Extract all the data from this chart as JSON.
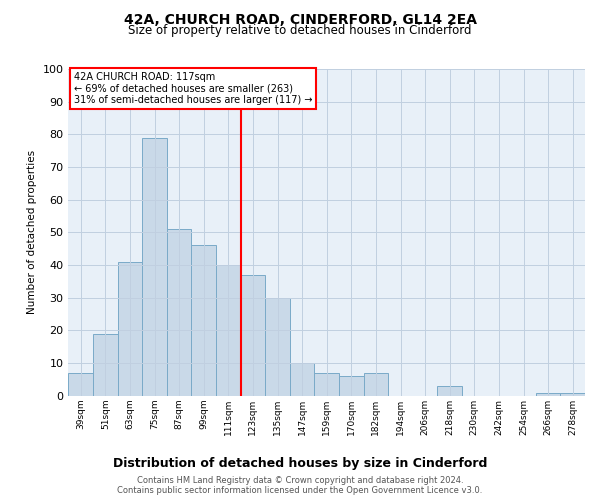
{
  "title": "42A, CHURCH ROAD, CINDERFORD, GL14 2EA",
  "subtitle": "Size of property relative to detached houses in Cinderford",
  "xlabel": "Distribution of detached houses by size in Cinderford",
  "ylabel": "Number of detached properties",
  "footer1": "Contains HM Land Registry data © Crown copyright and database right 2024.",
  "footer2": "Contains public sector information licensed under the Open Government Licence v3.0.",
  "annotation_line1": "42A CHURCH ROAD: 117sqm",
  "annotation_line2": "← 69% of detached houses are smaller (263)",
  "annotation_line3": "31% of semi-detached houses are larger (117) →",
  "bar_labels": [
    "39sqm",
    "51sqm",
    "63sqm",
    "75sqm",
    "87sqm",
    "99sqm",
    "111sqm",
    "123sqm",
    "135sqm",
    "147sqm",
    "159sqm",
    "170sqm",
    "182sqm",
    "194sqm",
    "206sqm",
    "218sqm",
    "230sqm",
    "242sqm",
    "254sqm",
    "266sqm",
    "278sqm"
  ],
  "bar_values": [
    7,
    19,
    41,
    79,
    51,
    46,
    40,
    37,
    30,
    10,
    7,
    6,
    7,
    0,
    0,
    3,
    0,
    0,
    0,
    1,
    1
  ],
  "bar_color": "#c9d9e8",
  "bar_edge_color": "#7aaac8",
  "vline_color": "red",
  "vline_index": 7,
  "ylim": [
    0,
    100
  ],
  "annotation_box_color": "red",
  "background_color": "#ffffff",
  "plot_bg_color": "#e8f0f8",
  "grid_color": "#c0cfe0"
}
